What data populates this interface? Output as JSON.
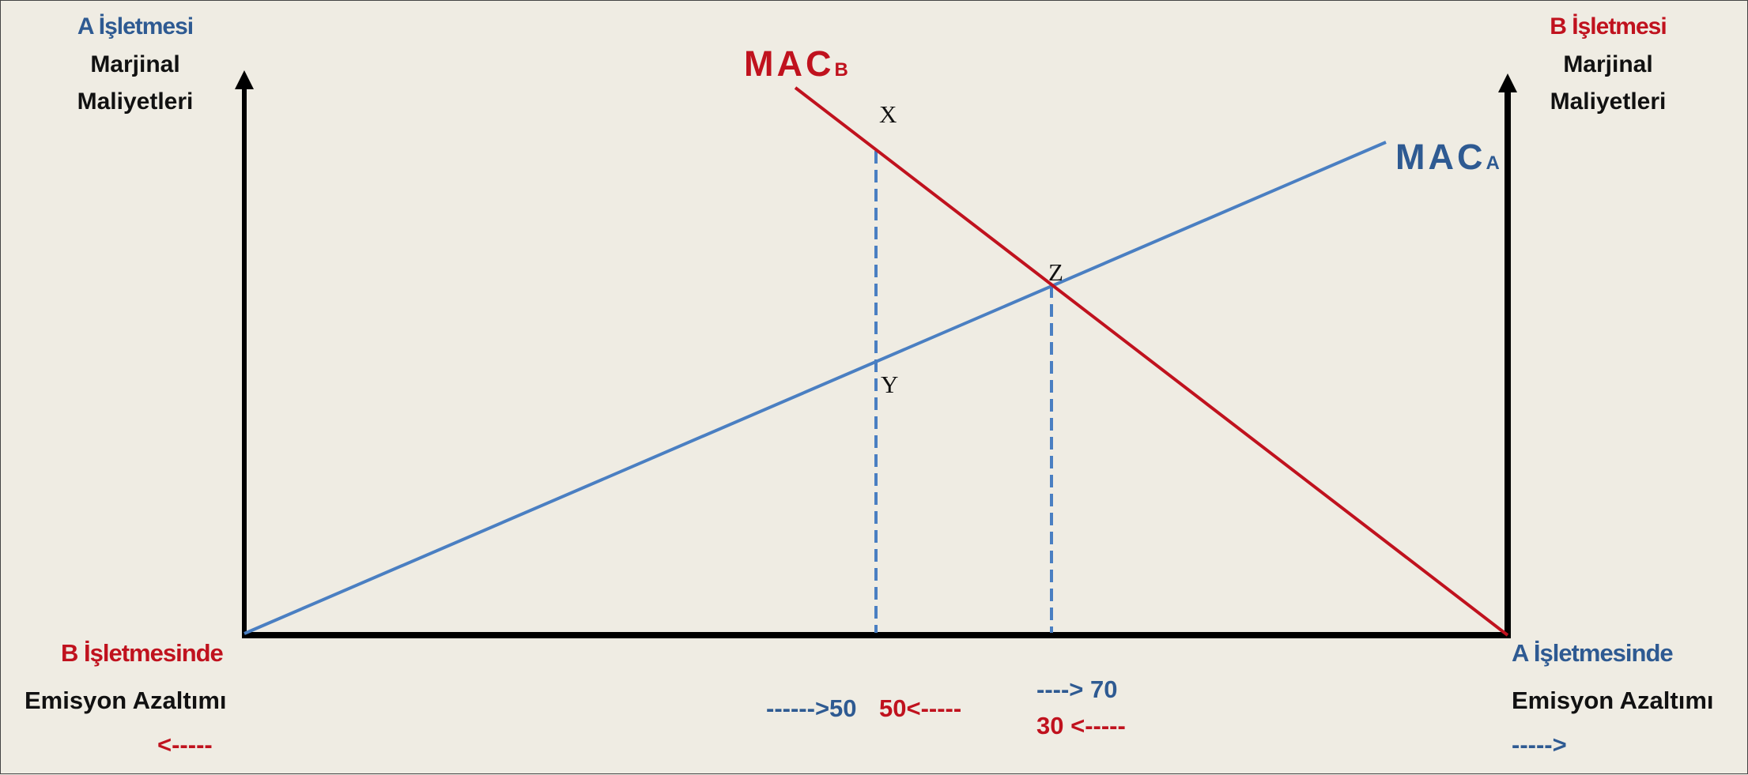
{
  "left_axis": {
    "firm_label": "A İşletmesi",
    "line1": "Marjinal",
    "line2": "Maliyetleri"
  },
  "right_axis": {
    "firm_label": "B İşletmesi",
    "line1": "Marjinal",
    "line2": "Maliyetleri"
  },
  "bottom_left": {
    "firm_label": "B İşletmesinde",
    "line": "Emisyon Azaltımı",
    "arrow": "<-----"
  },
  "bottom_right": {
    "firm_label": "A İşletmesinde",
    "line": "Emisyon Azaltımı",
    "arrow": "----->"
  },
  "curves": {
    "mac_b": {
      "main": "MAC",
      "sub": "B",
      "color": "#c0121e"
    },
    "mac_a": {
      "main": "MAC",
      "sub": "A",
      "color": "#4a7fc2"
    }
  },
  "points": {
    "x": "X",
    "y": "Y",
    "z": "Z"
  },
  "ticks": {
    "t50_blue": "------>50",
    "t50_red": "50<-----",
    "t70_blue": "----> 70",
    "t30_red": "30 <-----"
  }
}
